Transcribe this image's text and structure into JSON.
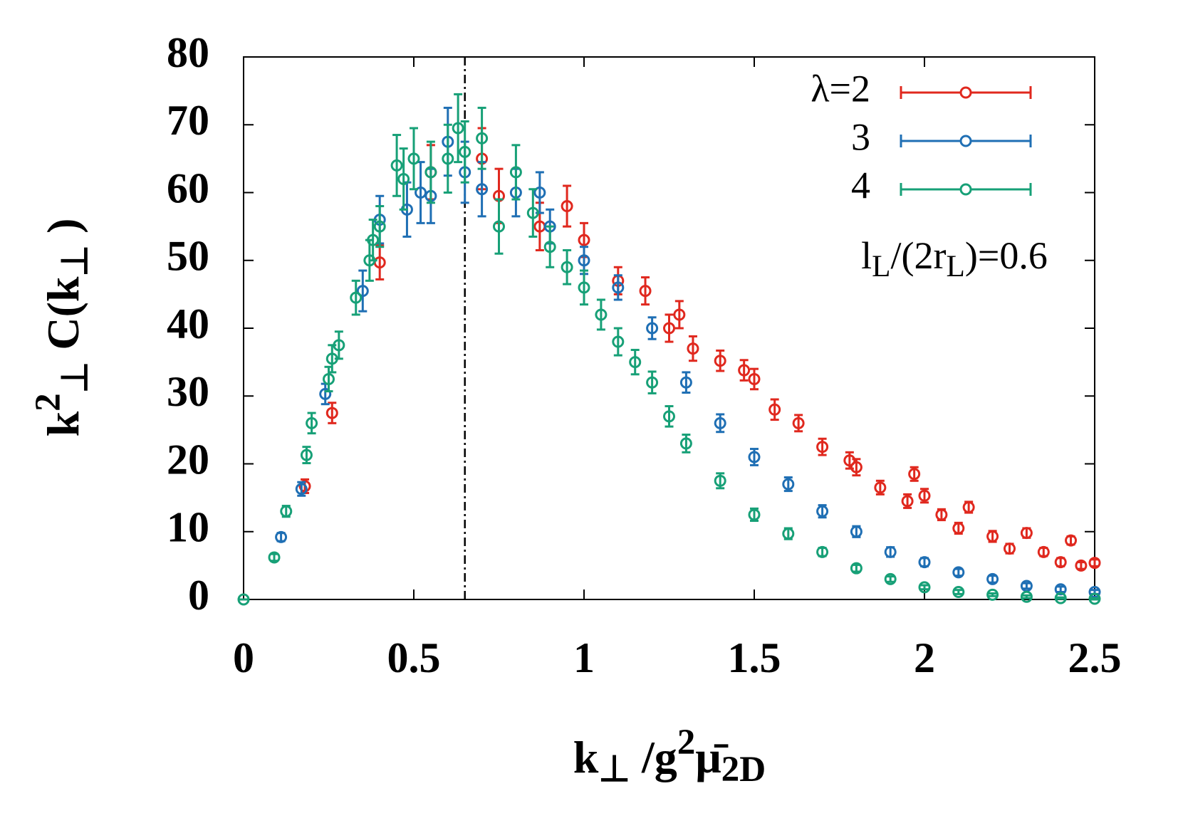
{
  "chart_data": {
    "type": "scatter",
    "xlabel_parts": [
      "k",
      "⊥",
      " /g",
      "2",
      "μ̄",
      "2D"
    ],
    "ylabel_parts": [
      "k",
      "2",
      "⊥",
      "  C(k",
      "⊥",
      " )"
    ],
    "annotation_parts": [
      "l",
      "L",
      "/(2r",
      "L",
      ")=0.6"
    ],
    "xlim": [
      0,
      2.5
    ],
    "ylim": [
      0,
      80
    ],
    "xticks": [
      0,
      0.5,
      1,
      1.5,
      2,
      2.5
    ],
    "yticks": [
      0,
      10,
      20,
      30,
      40,
      50,
      60,
      70,
      80
    ],
    "vline": 0.65,
    "legend": "upper right",
    "series": [
      {
        "name": "λ=2",
        "color": "#e0281e",
        "x": [
          0.18,
          0.26,
          0.4,
          0.55,
          0.7,
          0.75,
          0.87,
          0.95,
          1.0,
          1.1,
          1.18,
          1.25,
          1.28,
          1.32,
          1.4,
          1.47,
          1.5,
          1.56,
          1.63,
          1.7,
          1.78,
          1.8,
          1.87,
          1.95,
          1.97,
          2.0,
          2.05,
          2.1,
          2.13,
          2.2,
          2.25,
          2.3,
          2.35,
          2.4,
          2.43,
          2.46,
          2.5
        ],
        "values": [
          16.7,
          27.5,
          49.7,
          63,
          65,
          59.5,
          55,
          58,
          53,
          47,
          45.5,
          40,
          42,
          37,
          35.2,
          33.8,
          32.5,
          28,
          26,
          22.5,
          20.5,
          19.5,
          16.5,
          14.5,
          18.5,
          15.3,
          12.5,
          10.5,
          13.6,
          9.3,
          7.5,
          9.8,
          7,
          5.5,
          8.7,
          5,
          5.4
        ],
        "errors": [
          1,
          1.5,
          2.5,
          4,
          4.5,
          4,
          3.5,
          3,
          2.5,
          2,
          2,
          2,
          2,
          1.8,
          1.5,
          1.5,
          1.5,
          1.5,
          1.2,
          1.2,
          1.2,
          1.2,
          1,
          1,
          1,
          1,
          0.8,
          0.8,
          0.8,
          0.8,
          0.7,
          0.7,
          0.6,
          0.6,
          0.6,
          0.5,
          0.5
        ]
      },
      {
        "name": "3",
        "color": "#1f6fb4",
        "x": [
          0.11,
          0.17,
          0.24,
          0.35,
          0.4,
          0.48,
          0.52,
          0.55,
          0.6,
          0.65,
          0.7,
          0.8,
          0.87,
          0.9,
          1.0,
          1.1,
          1.2,
          1.3,
          1.4,
          1.5,
          1.6,
          1.7,
          1.8,
          1.9,
          2.0,
          2.1,
          2.2,
          2.3,
          2.4,
          2.5
        ],
        "values": [
          9.2,
          16.3,
          30.3,
          45.5,
          56,
          57.5,
          60,
          59.5,
          67.5,
          63,
          60.5,
          60,
          60,
          55,
          50,
          46,
          40,
          32,
          26,
          21,
          17,
          13,
          10,
          7,
          5.5,
          4,
          3,
          2,
          1.5,
          1.1
        ],
        "errors": [
          0.6,
          1,
          1.5,
          3,
          3.5,
          4,
          4.5,
          4,
          5,
          4.5,
          4,
          3.5,
          3,
          2.5,
          2,
          1.8,
          1.6,
          1.5,
          1.3,
          1.2,
          1,
          0.9,
          0.8,
          0.7,
          0.6,
          0.5,
          0.5,
          0.4,
          0.4,
          0.3
        ]
      },
      {
        "name": "4",
        "color": "#17a077",
        "x": [
          0,
          0.09,
          0.125,
          0.185,
          0.2,
          0.25,
          0.26,
          0.28,
          0.33,
          0.37,
          0.38,
          0.4,
          0.45,
          0.47,
          0.5,
          0.55,
          0.6,
          0.63,
          0.65,
          0.7,
          0.75,
          0.8,
          0.85,
          0.9,
          0.95,
          1.0,
          1.05,
          1.1,
          1.15,
          1.2,
          1.25,
          1.3,
          1.4,
          1.5,
          1.6,
          1.7,
          1.8,
          1.9,
          2.0,
          2.1,
          2.2,
          2.3,
          2.4,
          2.5
        ],
        "values": [
          0,
          6.2,
          13,
          21.3,
          26,
          32.5,
          35.5,
          37.5,
          44.5,
          50,
          53,
          55,
          64,
          62,
          65,
          63,
          65,
          69.5,
          66,
          68,
          55,
          63,
          57,
          52,
          49,
          46,
          42,
          38,
          35,
          32,
          27,
          23,
          17.5,
          12.5,
          9.7,
          7,
          4.6,
          3,
          1.8,
          1.1,
          0.7,
          0.4,
          0.2,
          0.1
        ],
        "errors": [
          0,
          0.5,
          0.8,
          1.2,
          1.5,
          1.8,
          2,
          2,
          2.5,
          3,
          3,
          3,
          4.5,
          4.5,
          4.5,
          4.5,
          5,
          5,
          4.5,
          4.5,
          4,
          4,
          3.5,
          3,
          2.5,
          2.5,
          2.2,
          2,
          1.8,
          1.6,
          1.5,
          1.3,
          1.1,
          0.9,
          0.8,
          0.6,
          0.5,
          0.4,
          0.3,
          0.3,
          0.2,
          0.2,
          0.1,
          0.1
        ]
      }
    ]
  }
}
